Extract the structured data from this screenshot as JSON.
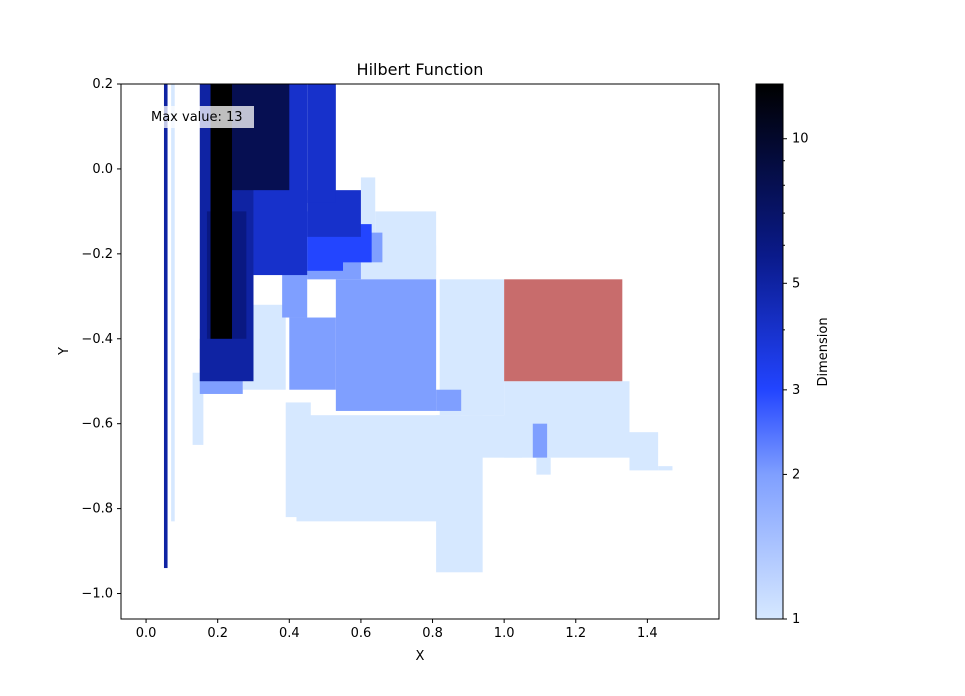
{
  "chart_data": {
    "type": "heatmap",
    "title": "Hilbert Function",
    "xlabel": "X",
    "ylabel": "Y",
    "xlim": [
      -0.07,
      1.6
    ],
    "ylim": [
      -1.06,
      0.2
    ],
    "x_ticks": [
      0.0,
      0.2,
      0.4,
      0.6,
      0.8,
      1.0,
      1.2,
      1.4
    ],
    "x_tick_labels": [
      "0.0",
      "0.2",
      "0.4",
      "0.6",
      "0.8",
      "1.0",
      "1.2",
      "1.4"
    ],
    "y_ticks": [
      0.2,
      0.0,
      -0.2,
      -0.4,
      -0.6,
      -0.8,
      -1.0
    ],
    "y_tick_labels": [
      "0.2",
      "0.0",
      "−0.2",
      "−0.4",
      "−0.6",
      "−0.8",
      "−1.0"
    ],
    "annotation": "Max value: 13",
    "colorbar": {
      "label": "Dimension",
      "scale": "log",
      "range": [
        1,
        13
      ],
      "ticks": [
        1,
        2,
        3,
        5,
        10
      ],
      "tick_labels": [
        "1",
        "2",
        "3",
        "5",
        "10"
      ],
      "colors": [
        "#d6e8ff",
        "#7f9fff",
        "#2244ff",
        "#0a1a8a",
        "#000000"
      ]
    },
    "highlight_color": "#c86c6c",
    "regions": [
      {
        "x0": 0.81,
        "x1": 0.94,
        "y0": -0.95,
        "y1": -0.58,
        "value": 1
      },
      {
        "x0": 0.42,
        "x1": 0.88,
        "y0": -0.83,
        "y1": -0.58,
        "value": 1
      },
      {
        "x0": 0.39,
        "x1": 0.46,
        "y0": -0.82,
        "y1": -0.55,
        "value": 1
      },
      {
        "x0": 0.27,
        "x1": 0.39,
        "y0": -0.52,
        "y1": -0.32,
        "value": 1
      },
      {
        "x0": 0.58,
        "x1": 0.81,
        "y0": -0.56,
        "y1": -0.55,
        "value": 1
      },
      {
        "x0": 0.9,
        "x1": 1.05,
        "y0": -0.68,
        "y1": -0.58,
        "value": 1
      },
      {
        "x0": 0.82,
        "x1": 1.0,
        "y0": -0.58,
        "y1": -0.26,
        "value": 1
      },
      {
        "x0": 1.0,
        "x1": 1.35,
        "y0": -0.68,
        "y1": -0.5,
        "value": 1
      },
      {
        "x0": 1.35,
        "x1": 1.43,
        "y0": -0.71,
        "y1": -0.62,
        "value": 1
      },
      {
        "x0": 1.43,
        "x1": 1.47,
        "y0": -0.71,
        "y1": -0.7,
        "value": 1
      },
      {
        "x0": 1.09,
        "x1": 1.13,
        "y0": -0.72,
        "y1": -0.68,
        "value": 1
      },
      {
        "x0": 0.64,
        "x1": 0.81,
        "y0": -0.25,
        "y1": -0.1,
        "value": 1
      },
      {
        "x0": 0.6,
        "x1": 0.64,
        "y0": -0.21,
        "y1": -0.02,
        "value": 1
      },
      {
        "x0": 0.13,
        "x1": 0.16,
        "y0": -0.65,
        "y1": -0.48,
        "value": 1
      },
      {
        "x0": 0.4,
        "x1": 0.81,
        "y0": -0.26,
        "y1": -0.18,
        "value": 1
      },
      {
        "x0": 0.53,
        "x1": 0.81,
        "y0": -0.57,
        "y1": -0.26,
        "value": 2
      },
      {
        "x0": 0.4,
        "x1": 0.53,
        "y0": -0.52,
        "y1": -0.35,
        "value": 2
      },
      {
        "x0": 0.81,
        "x1": 0.88,
        "y0": -0.57,
        "y1": -0.52,
        "value": 2
      },
      {
        "x0": 0.45,
        "x1": 0.6,
        "y0": -0.26,
        "y1": -0.16,
        "value": 2
      },
      {
        "x0": 0.6,
        "x1": 0.66,
        "y0": -0.22,
        "y1": -0.15,
        "value": 2
      },
      {
        "x0": 0.38,
        "x1": 0.45,
        "y0": -0.35,
        "y1": -0.24,
        "value": 2
      },
      {
        "x0": 1.08,
        "x1": 1.12,
        "y0": -0.68,
        "y1": -0.6,
        "value": 2
      },
      {
        "x0": 0.15,
        "x1": 0.27,
        "y0": -0.53,
        "y1": -0.4,
        "value": 2
      },
      {
        "x0": 0.55,
        "x1": 0.63,
        "y0": -0.22,
        "y1": -0.13,
        "value": 3
      },
      {
        "x0": 0.45,
        "x1": 0.55,
        "y0": -0.24,
        "y1": -0.1,
        "value": 3
      },
      {
        "x0": 0.3,
        "x1": 0.45,
        "y0": -0.25,
        "y1": 0.2,
        "value": 4
      },
      {
        "x0": 0.45,
        "x1": 0.6,
        "y0": -0.16,
        "y1": -0.05,
        "value": 4
      },
      {
        "x0": 0.45,
        "x1": 0.53,
        "y0": -0.08,
        "y1": 0.2,
        "value": 4
      },
      {
        "x0": 0.15,
        "x1": 0.3,
        "y0": -0.5,
        "y1": 0.2,
        "value": 5
      },
      {
        "x0": 0.17,
        "x1": 0.28,
        "y0": -0.4,
        "y1": -0.1,
        "value": 6
      },
      {
        "x0": 0.2,
        "x1": 0.4,
        "y0": -0.05,
        "y1": 0.2,
        "value": 8
      },
      {
        "x0": 0.18,
        "x1": 0.24,
        "y0": -0.4,
        "y1": 0.2,
        "value": 13
      },
      {
        "x0": 0.05,
        "x1": 0.06,
        "y0": -0.94,
        "y1": 0.2,
        "value": 5
      },
      {
        "x0": 0.07,
        "x1": 0.08,
        "y0": -0.83,
        "y1": 0.2,
        "value": 1
      }
    ],
    "highlight_regions": [
      {
        "x0": 1.0,
        "x1": 1.33,
        "y0": -0.5,
        "y1": -0.26
      }
    ]
  }
}
